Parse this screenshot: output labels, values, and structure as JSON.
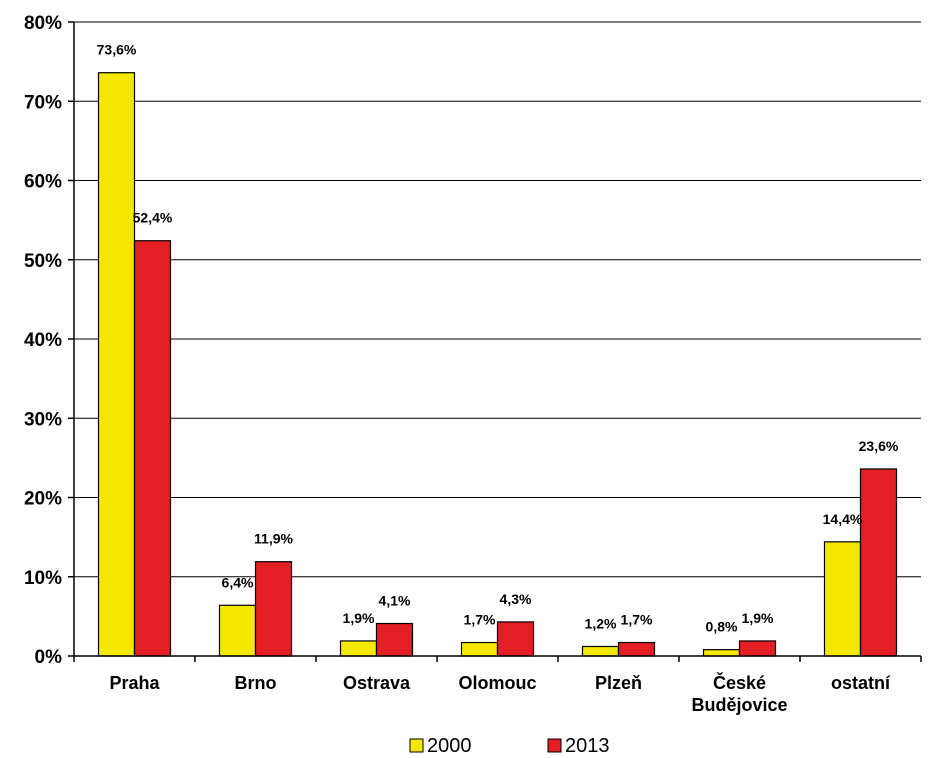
{
  "chart_data": {
    "type": "bar",
    "categories": [
      "Praha",
      "Brno",
      "Ostrava",
      "Olomouc",
      "Plzeň",
      "České Budějovice",
      "ostatní"
    ],
    "series": [
      {
        "name": "2000",
        "color": "#f5e800",
        "values": [
          73.6,
          6.4,
          1.9,
          1.7,
          1.2,
          0.8,
          14.4
        ],
        "labels": [
          "73,6%",
          "6,4%",
          "1,9%",
          "1,7%",
          "1,2%",
          "0,8%",
          "14,4%"
        ]
      },
      {
        "name": "2013",
        "color": "#e31e24",
        "values": [
          52.4,
          11.9,
          4.1,
          4.3,
          1.7,
          1.9,
          23.6
        ],
        "labels": [
          "52,4%",
          "11,9%",
          "4,1%",
          "4,3%",
          "1,7%",
          "1,9%",
          "23,6%"
        ]
      }
    ],
    "ylim": [
      0,
      80
    ],
    "yticks": [
      0,
      10,
      20,
      30,
      40,
      50,
      60,
      70,
      80
    ],
    "ytick_labels": [
      "0%",
      "10%",
      "20%",
      "30%",
      "40%",
      "50%",
      "60%",
      "70%",
      "80%"
    ],
    "grid": true,
    "legend": "bottom-center",
    "title": "",
    "xlabel": "",
    "ylabel": ""
  }
}
